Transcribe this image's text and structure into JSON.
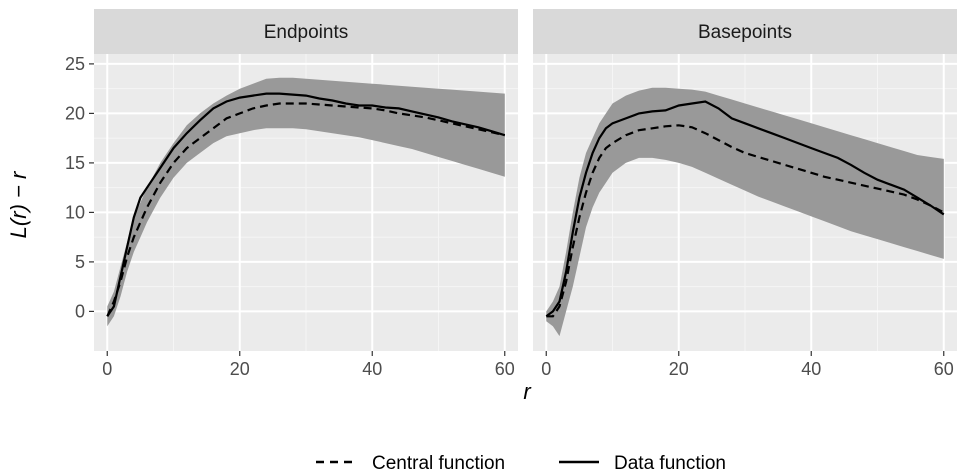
{
  "chart_data": {
    "type": "line",
    "xlabel": "r",
    "ylabel": "L(r) − r",
    "xlim": [
      -2,
      62
    ],
    "ylim": [
      -4,
      26
    ],
    "x_ticks": [
      0,
      20,
      40,
      60
    ],
    "y_ticks": [
      0,
      5,
      10,
      15,
      20,
      25
    ],
    "grid": true,
    "legend_position": "bottom",
    "legend": {
      "central": "Central function",
      "data": "Data function"
    },
    "series_colors": {
      "line": "#000000",
      "envelope": "#999999",
      "panel_bg": "#ebebeb",
      "strip_bg": "#d9d9d9"
    },
    "panels": [
      {
        "title": "Endpoints",
        "x": [
          0,
          1,
          2,
          3,
          4,
          5,
          6,
          8,
          10,
          12,
          14,
          16,
          18,
          20,
          22,
          24,
          26,
          28,
          30,
          32,
          34,
          36,
          38,
          40,
          42,
          44,
          46,
          48,
          50,
          52,
          54,
          56,
          58,
          60
        ],
        "central": [
          -0.5,
          1.0,
          3.0,
          5.5,
          7.5,
          9.0,
          10.5,
          13.0,
          15.0,
          16.5,
          17.5,
          18.5,
          19.5,
          20.0,
          20.5,
          20.8,
          21.0,
          21.0,
          21.0,
          20.9,
          20.8,
          20.7,
          20.6,
          20.5,
          20.3,
          20.0,
          19.8,
          19.6,
          19.3,
          19.0,
          18.7,
          18.4,
          18.1,
          17.8
        ],
        "data": [
          -0.5,
          0.5,
          3.5,
          6.5,
          9.5,
          11.5,
          12.5,
          14.5,
          16.5,
          18.0,
          19.3,
          20.5,
          21.2,
          21.6,
          21.8,
          22.0,
          22.0,
          21.9,
          21.8,
          21.5,
          21.3,
          21.0,
          20.8,
          20.8,
          20.6,
          20.5,
          20.2,
          19.9,
          19.6,
          19.2,
          18.9,
          18.6,
          18.2,
          17.8
        ],
        "lower": [
          -1.5,
          -0.5,
          1.5,
          4.0,
          6.0,
          7.5,
          9.0,
          11.5,
          13.5,
          15.0,
          16.0,
          17.0,
          17.7,
          18.0,
          18.3,
          18.5,
          18.5,
          18.5,
          18.4,
          18.2,
          18.0,
          17.8,
          17.6,
          17.3,
          17.0,
          16.7,
          16.4,
          16.0,
          15.6,
          15.2,
          14.8,
          14.4,
          14.0,
          13.6
        ],
        "upper": [
          0.5,
          2.0,
          4.5,
          7.0,
          9.5,
          11.0,
          12.5,
          15.0,
          17.0,
          18.8,
          20.0,
          21.0,
          21.8,
          22.5,
          23.0,
          23.5,
          23.6,
          23.6,
          23.5,
          23.4,
          23.3,
          23.2,
          23.1,
          23.0,
          22.9,
          22.8,
          22.7,
          22.6,
          22.5,
          22.4,
          22.3,
          22.2,
          22.1,
          22.0
        ]
      },
      {
        "title": "Basepoints",
        "x": [
          0,
          1,
          2,
          3,
          4,
          5,
          6,
          7,
          8,
          9,
          10,
          12,
          14,
          16,
          18,
          20,
          22,
          24,
          26,
          28,
          30,
          32,
          34,
          36,
          38,
          40,
          42,
          44,
          46,
          48,
          50,
          52,
          54,
          56,
          58,
          60
        ],
        "central": [
          -0.5,
          -0.5,
          0.5,
          3.0,
          6.5,
          9.5,
          12.0,
          14.0,
          15.5,
          16.5,
          17.0,
          17.8,
          18.3,
          18.5,
          18.7,
          18.8,
          18.6,
          18.0,
          17.3,
          16.6,
          16.0,
          15.6,
          15.2,
          14.8,
          14.4,
          14.0,
          13.6,
          13.3,
          13.0,
          12.7,
          12.4,
          12.1,
          11.8,
          11.3,
          10.7,
          10.0
        ],
        "data": [
          -0.5,
          0.0,
          1.0,
          4.0,
          8.0,
          11.5,
          14.0,
          16.0,
          17.5,
          18.5,
          19.0,
          19.5,
          20.0,
          20.2,
          20.3,
          20.8,
          21.0,
          21.2,
          20.5,
          19.5,
          19.0,
          18.5,
          18.0,
          17.5,
          17.0,
          16.5,
          16.0,
          15.5,
          14.8,
          14.0,
          13.3,
          12.8,
          12.3,
          11.5,
          10.7,
          9.8
        ],
        "lower": [
          -1.0,
          -1.5,
          -2.5,
          0.0,
          2.5,
          5.5,
          8.5,
          10.5,
          12.0,
          13.0,
          14.0,
          15.0,
          15.5,
          15.5,
          15.3,
          15.0,
          14.6,
          14.0,
          13.4,
          12.8,
          12.2,
          11.6,
          11.1,
          10.6,
          10.1,
          9.6,
          9.1,
          8.6,
          8.1,
          7.7,
          7.3,
          6.9,
          6.5,
          6.1,
          5.7,
          5.3
        ],
        "upper": [
          0.0,
          1.0,
          2.5,
          6.0,
          10.0,
          13.5,
          16.0,
          17.5,
          19.0,
          20.0,
          21.0,
          21.8,
          22.3,
          22.6,
          22.6,
          22.5,
          22.4,
          22.2,
          21.8,
          21.4,
          21.0,
          20.6,
          20.2,
          19.8,
          19.4,
          19.0,
          18.6,
          18.2,
          17.8,
          17.4,
          17.0,
          16.6,
          16.2,
          15.8,
          15.6,
          15.4
        ]
      }
    ]
  }
}
